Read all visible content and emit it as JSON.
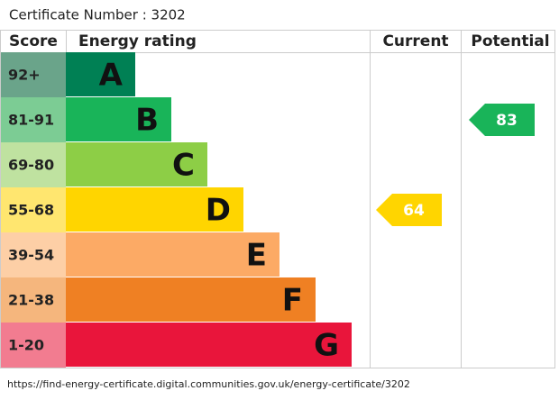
{
  "certificate": "Certificate Number : 3202",
  "headers": [
    "Score",
    "Energy rating",
    "Current",
    "Potential"
  ],
  "bands": [
    {
      "score": "92+",
      "letter": "A",
      "color": "#008054",
      "light": "#6aa48a"
    },
    {
      "score": "81-91",
      "letter": "B",
      "color": "#19b459",
      "light": "#7ccc94"
    },
    {
      "score": "69-80",
      "letter": "C",
      "color": "#8dce46",
      "light": "#bfe2a0"
    },
    {
      "score": "55-68",
      "letter": "D",
      "color": "#ffd500",
      "light": "#ffe66f"
    },
    {
      "score": "39-54",
      "letter": "E",
      "color": "#fcaa65",
      "light": "#fdcfa6"
    },
    {
      "score": "21-38",
      "letter": "F",
      "color": "#ef8023",
      "light": "#f5b67d"
    },
    {
      "score": "1-20",
      "letter": "G",
      "color": "#e9153b",
      "light": "#f27c90"
    }
  ],
  "current": 64,
  "potential": 83,
  "footer": "https://find-energy-certificate.digital.communities.gov.uk/energy-certificate/3202"
}
